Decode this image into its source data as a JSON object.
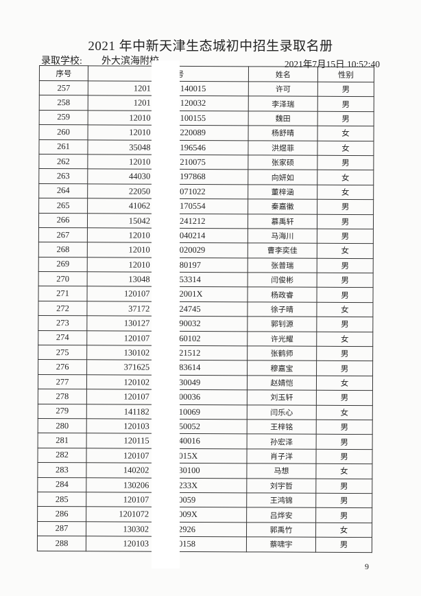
{
  "title": "2021 年中新天津生态城初中招生录取名册",
  "school_label": "录取学校:",
  "school_name": "外大滨海附校",
  "timestamp": "2021年7月15日  10:52:40",
  "headers": [
    "序号",
    "身份证号",
    "姓名",
    "性别"
  ],
  "rows": [
    [
      "257",
      "1201",
      "140015",
      "许可",
      "男"
    ],
    [
      "258",
      "1201",
      "120032",
      "李泽瑞",
      "男"
    ],
    [
      "259",
      "12010",
      "100155",
      "魏田",
      "男"
    ],
    [
      "260",
      "12010",
      "220089",
      "杨舒晴",
      "女"
    ],
    [
      "261",
      "35048",
      "196546",
      "洪煜菲",
      "女"
    ],
    [
      "262",
      "12010",
      "210075",
      "张家硕",
      "男"
    ],
    [
      "263",
      "44030",
      "197868",
      "向妍如",
      "女"
    ],
    [
      "264",
      "22050",
      "071022",
      "董梓涵",
      "女"
    ],
    [
      "265",
      "41062",
      "170554",
      "秦嘉徽",
      "男"
    ],
    [
      "266",
      "15042",
      "241212",
      "慕禹轩",
      "男"
    ],
    [
      "267",
      "12010",
      "040214",
      "马海川",
      "男"
    ],
    [
      "268",
      "12010",
      "020029",
      "曹李奕佳",
      "女"
    ],
    [
      "269",
      "12010",
      "80197",
      "张普瑞",
      "男"
    ],
    [
      "270",
      "13048",
      "53314",
      "闫俊彬",
      "男"
    ],
    [
      "271",
      "120107",
      "2001X",
      "杨政睿",
      "男"
    ],
    [
      "272",
      "37172",
      "24745",
      "徐子晴",
      "女"
    ],
    [
      "273",
      "130127",
      "90032",
      "郭钊源",
      "男"
    ],
    [
      "274",
      "120107",
      "60102",
      "许光耀",
      "女"
    ],
    [
      "275",
      "130102",
      "21512",
      "张鹤师",
      "男"
    ],
    [
      "276",
      "371625",
      "83614",
      "穆嘉宝",
      "男"
    ],
    [
      "277",
      "120102",
      "30049",
      "赵婧恺",
      "女"
    ],
    [
      "278",
      "120107",
      "00036",
      "刘玉轩",
      "男"
    ],
    [
      "279",
      "141182",
      "10069",
      "闫乐心",
      "女"
    ],
    [
      "280",
      "120103",
      "50052",
      "王梓铭",
      "男"
    ],
    [
      "281",
      "120115",
      "40016",
      "孙宏泽",
      "男"
    ],
    [
      "282",
      "120107",
      "015X",
      "肖子洋",
      "男"
    ],
    [
      "283",
      "140202",
      "30100",
      "马想",
      "女"
    ],
    [
      "284",
      "130206",
      "233X",
      "刘宇哲",
      "男"
    ],
    [
      "285",
      "120107",
      "0059",
      "王鸿锦",
      "男"
    ],
    [
      "286",
      "1201072",
      "009X",
      "吕烨安",
      "男"
    ],
    [
      "287",
      "130302",
      "2926",
      "郭禹竹",
      "女"
    ],
    [
      "288",
      "120103",
      "0158",
      "蔡啸宇",
      "男"
    ]
  ],
  "page_number": "9"
}
